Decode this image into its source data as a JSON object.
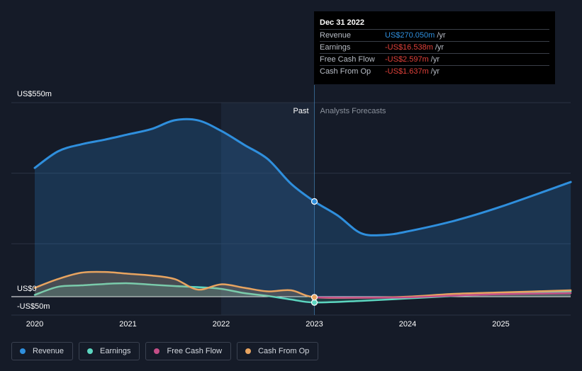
{
  "chart_data": {
    "type": "line",
    "x_ticks": [
      "2020",
      "2021",
      "2022",
      "2023",
      "2024",
      "2025"
    ],
    "y_ticks": [
      {
        "label": "US$550m",
        "value": 550
      },
      {
        "label": "US$0",
        "value": 0
      },
      {
        "label": "-US$50m",
        "value": -50
      }
    ],
    "ylim": [
      -50,
      550
    ],
    "xlim": [
      2020,
      2025.75
    ],
    "past_label": "Past",
    "forecast_label": "Analysts Forecasts",
    "divider_x": 2023,
    "series": [
      {
        "name": "Revenue",
        "color": "#2f8fdd",
        "fill": true,
        "points": [
          [
            2020.0,
            365
          ],
          [
            2020.25,
            412
          ],
          [
            2020.5,
            432
          ],
          [
            2020.75,
            445
          ],
          [
            2021.0,
            460
          ],
          [
            2021.25,
            475
          ],
          [
            2021.5,
            500
          ],
          [
            2021.75,
            500
          ],
          [
            2022.0,
            470
          ],
          [
            2022.25,
            430
          ],
          [
            2022.5,
            390
          ],
          [
            2022.75,
            320
          ],
          [
            2023.0,
            270
          ],
          [
            2023.25,
            230
          ],
          [
            2023.5,
            180
          ],
          [
            2023.75,
            175
          ],
          [
            2024.0,
            185
          ],
          [
            2024.5,
            215
          ],
          [
            2025.0,
            255
          ],
          [
            2025.75,
            325
          ]
        ]
      },
      {
        "name": "Earnings",
        "color": "#5cd6c0",
        "fill": true,
        "points": [
          [
            2020.0,
            5
          ],
          [
            2020.25,
            28
          ],
          [
            2020.5,
            32
          ],
          [
            2020.75,
            36
          ],
          [
            2021.0,
            38
          ],
          [
            2021.25,
            34
          ],
          [
            2021.5,
            30
          ],
          [
            2021.75,
            27
          ],
          [
            2022.0,
            22
          ],
          [
            2022.25,
            10
          ],
          [
            2022.5,
            2
          ],
          [
            2022.75,
            -8
          ],
          [
            2023.0,
            -16.5
          ],
          [
            2023.5,
            -12
          ],
          [
            2024.0,
            -5
          ],
          [
            2024.5,
            2
          ],
          [
            2025.0,
            8
          ],
          [
            2025.75,
            15
          ]
        ]
      },
      {
        "name": "Free Cash Flow",
        "color": "#c44e87",
        "fill": false,
        "points": [
          [
            2023.0,
            -2.6
          ],
          [
            2023.5,
            -3
          ],
          [
            2024.0,
            -2
          ],
          [
            2024.5,
            3
          ],
          [
            2025.0,
            7
          ],
          [
            2025.75,
            10
          ]
        ]
      },
      {
        "name": "Cash From Op",
        "color": "#e8a460",
        "fill": true,
        "points": [
          [
            2020.0,
            25
          ],
          [
            2020.25,
            50
          ],
          [
            2020.5,
            68
          ],
          [
            2020.75,
            70
          ],
          [
            2021.0,
            65
          ],
          [
            2021.25,
            60
          ],
          [
            2021.5,
            50
          ],
          [
            2021.75,
            20
          ],
          [
            2022.0,
            35
          ],
          [
            2022.25,
            25
          ],
          [
            2022.5,
            15
          ],
          [
            2022.75,
            18
          ],
          [
            2023.0,
            -1.6
          ],
          [
            2023.5,
            -3
          ],
          [
            2024.0,
            0
          ],
          [
            2024.5,
            8
          ],
          [
            2025.0,
            12
          ],
          [
            2025.75,
            18
          ]
        ]
      }
    ],
    "tooltip": {
      "date": "Dec 31 2022",
      "rows": [
        {
          "label": "Revenue",
          "value": "US$270.050m",
          "unit": "/yr",
          "color": "#2f8fdd"
        },
        {
          "label": "Earnings",
          "value": "-US$16.538m",
          "unit": "/yr",
          "color": "#e0413a"
        },
        {
          "label": "Free Cash Flow",
          "value": "-US$2.597m",
          "unit": "/yr",
          "color": "#e0413a"
        },
        {
          "label": "Cash From Op",
          "value": "-US$1.637m",
          "unit": "/yr",
          "color": "#e0413a"
        }
      ]
    },
    "legend_position": "bottom-left",
    "grid": true
  }
}
